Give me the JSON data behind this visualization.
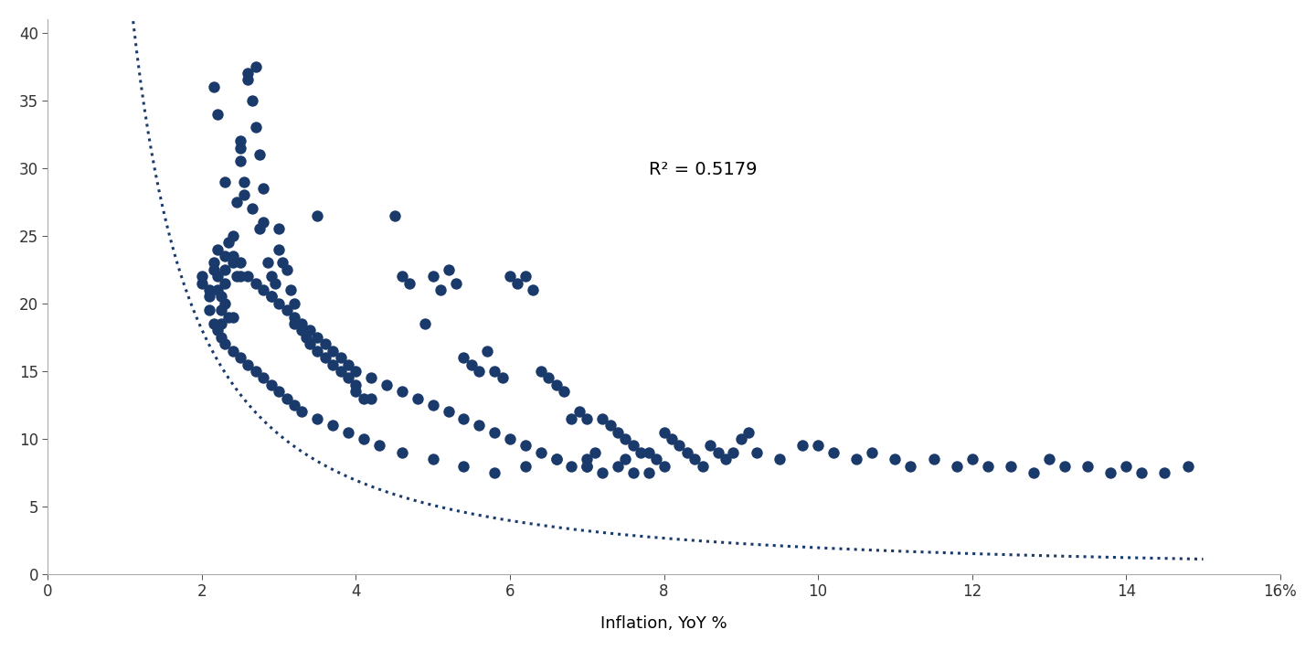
{
  "title": "",
  "xlabel": "Inflation, YoY %",
  "ylabel": "",
  "dot_color": "#1a3a6b",
  "curve_color": "#1a3a6b",
  "r2_text": "R² = 0.5179",
  "r2_x": 7.8,
  "r2_y": 29.5,
  "xlim": [
    0,
    16
  ],
  "ylim": [
    0,
    41
  ],
  "scatter_x": [
    2.0,
    2.0,
    2.1,
    2.1,
    2.15,
    2.15,
    2.2,
    2.2,
    2.2,
    2.25,
    2.25,
    2.25,
    2.3,
    2.3,
    2.3,
    2.3,
    2.35,
    2.35,
    2.4,
    2.4,
    2.4,
    2.45,
    2.45,
    2.5,
    2.5,
    2.5,
    2.5,
    2.55,
    2.55,
    2.6,
    2.6,
    2.65,
    2.65,
    2.7,
    2.7,
    2.75,
    2.75,
    2.8,
    2.8,
    2.85,
    2.9,
    2.9,
    2.95,
    3.0,
    3.0,
    3.05,
    3.1,
    3.15,
    3.2,
    3.2,
    3.3,
    3.35,
    3.4,
    3.5,
    3.5,
    3.6,
    3.7,
    3.8,
    3.9,
    4.0,
    4.0,
    4.1,
    4.2,
    4.5,
    4.6,
    4.7,
    4.9,
    5.0,
    5.1,
    5.2,
    5.3,
    5.4,
    5.5,
    5.6,
    5.7,
    5.8,
    5.9,
    6.0,
    6.1,
    6.2,
    6.3,
    6.4,
    6.5,
    6.6,
    6.7,
    6.8,
    6.9,
    7.0,
    7.0,
    7.1,
    7.2,
    7.3,
    7.4,
    7.5,
    7.5,
    7.6,
    7.7,
    7.8,
    7.9,
    8.0,
    8.0,
    8.1,
    8.2,
    8.3,
    8.4,
    8.5,
    8.6,
    8.7,
    8.8,
    8.9,
    9.0,
    9.1,
    9.2,
    9.5,
    9.8,
    10.0,
    10.2,
    10.5,
    10.7,
    11.0,
    11.2,
    11.5,
    11.8,
    12.0,
    12.2,
    12.5,
    12.8,
    13.0,
    13.2,
    13.5,
    13.8,
    14.0,
    14.2,
    14.5,
    14.8,
    2.15,
    2.2,
    2.3,
    2.4,
    2.5,
    2.6,
    2.7,
    2.8,
    2.9,
    3.0,
    3.1,
    3.2,
    3.3,
    3.4,
    3.5,
    3.6,
    3.7,
    3.8,
    3.9,
    4.0,
    4.2,
    4.4,
    4.6,
    4.8,
    5.0,
    5.2,
    5.4,
    5.6,
    5.8,
    6.0,
    6.2,
    6.4,
    6.6,
    6.8,
    7.0,
    7.2,
    7.4,
    7.6,
    7.8,
    2.1,
    2.15,
    2.2,
    2.25,
    2.3,
    2.4,
    2.5,
    2.6,
    2.7,
    2.8,
    2.9,
    3.0,
    3.1,
    3.2,
    3.3,
    3.5,
    3.7,
    3.9,
    4.1,
    4.3,
    4.6,
    5.0,
    5.4,
    5.8,
    6.2,
    6.6,
    7.0
  ],
  "scatter_y": [
    21.5,
    22.0,
    21.0,
    20.5,
    22.5,
    23.0,
    21.0,
    22.0,
    24.0,
    20.5,
    19.5,
    18.5,
    22.5,
    23.5,
    21.5,
    20.0,
    24.5,
    19.0,
    25.0,
    23.0,
    19.0,
    27.5,
    22.0,
    31.5,
    32.0,
    30.5,
    22.0,
    29.0,
    28.0,
    37.0,
    36.5,
    35.0,
    27.0,
    37.5,
    33.0,
    25.5,
    31.0,
    28.5,
    26.0,
    23.0,
    22.0,
    20.5,
    21.5,
    25.5,
    24.0,
    23.0,
    22.5,
    21.0,
    20.0,
    18.5,
    18.0,
    17.5,
    17.0,
    16.5,
    26.5,
    16.0,
    15.5,
    15.0,
    14.5,
    14.0,
    13.5,
    13.0,
    13.0,
    26.5,
    22.0,
    21.5,
    18.5,
    22.0,
    21.0,
    22.5,
    21.5,
    16.0,
    15.5,
    15.0,
    16.5,
    15.0,
    14.5,
    22.0,
    21.5,
    22.0,
    21.0,
    15.0,
    14.5,
    14.0,
    13.5,
    11.5,
    12.0,
    8.5,
    11.5,
    9.0,
    11.5,
    11.0,
    10.5,
    10.0,
    8.5,
    9.5,
    9.0,
    9.0,
    8.5,
    10.5,
    8.0,
    10.0,
    9.5,
    9.0,
    8.5,
    8.0,
    9.5,
    9.0,
    8.5,
    9.0,
    10.0,
    10.5,
    9.0,
    8.5,
    9.5,
    9.5,
    9.0,
    8.5,
    9.0,
    8.5,
    8.0,
    8.5,
    8.0,
    8.5,
    8.0,
    8.0,
    7.5,
    8.5,
    8.0,
    8.0,
    7.5,
    8.0,
    7.5,
    7.5,
    8.0,
    36.0,
    34.0,
    29.0,
    23.5,
    23.0,
    22.0,
    21.5,
    21.0,
    20.5,
    20.0,
    19.5,
    19.0,
    18.5,
    18.0,
    17.5,
    17.0,
    16.5,
    16.0,
    15.5,
    15.0,
    14.5,
    14.0,
    13.5,
    13.0,
    12.5,
    12.0,
    11.5,
    11.0,
    10.5,
    10.0,
    9.5,
    9.0,
    8.5,
    8.0,
    8.0,
    7.5,
    8.0,
    7.5,
    7.5,
    19.5,
    18.5,
    18.0,
    17.5,
    17.0,
    16.5,
    16.0,
    15.5,
    15.0,
    14.5,
    14.0,
    13.5,
    13.0,
    12.5,
    12.0,
    11.5,
    11.0,
    10.5,
    10.0,
    9.5,
    9.0,
    8.5,
    8.0,
    7.5,
    8.0,
    8.5,
    8.0
  ],
  "curve_a": 47.0,
  "curve_b": -1.38,
  "curve_xmin": 0.85,
  "curve_xmax": 15.0
}
